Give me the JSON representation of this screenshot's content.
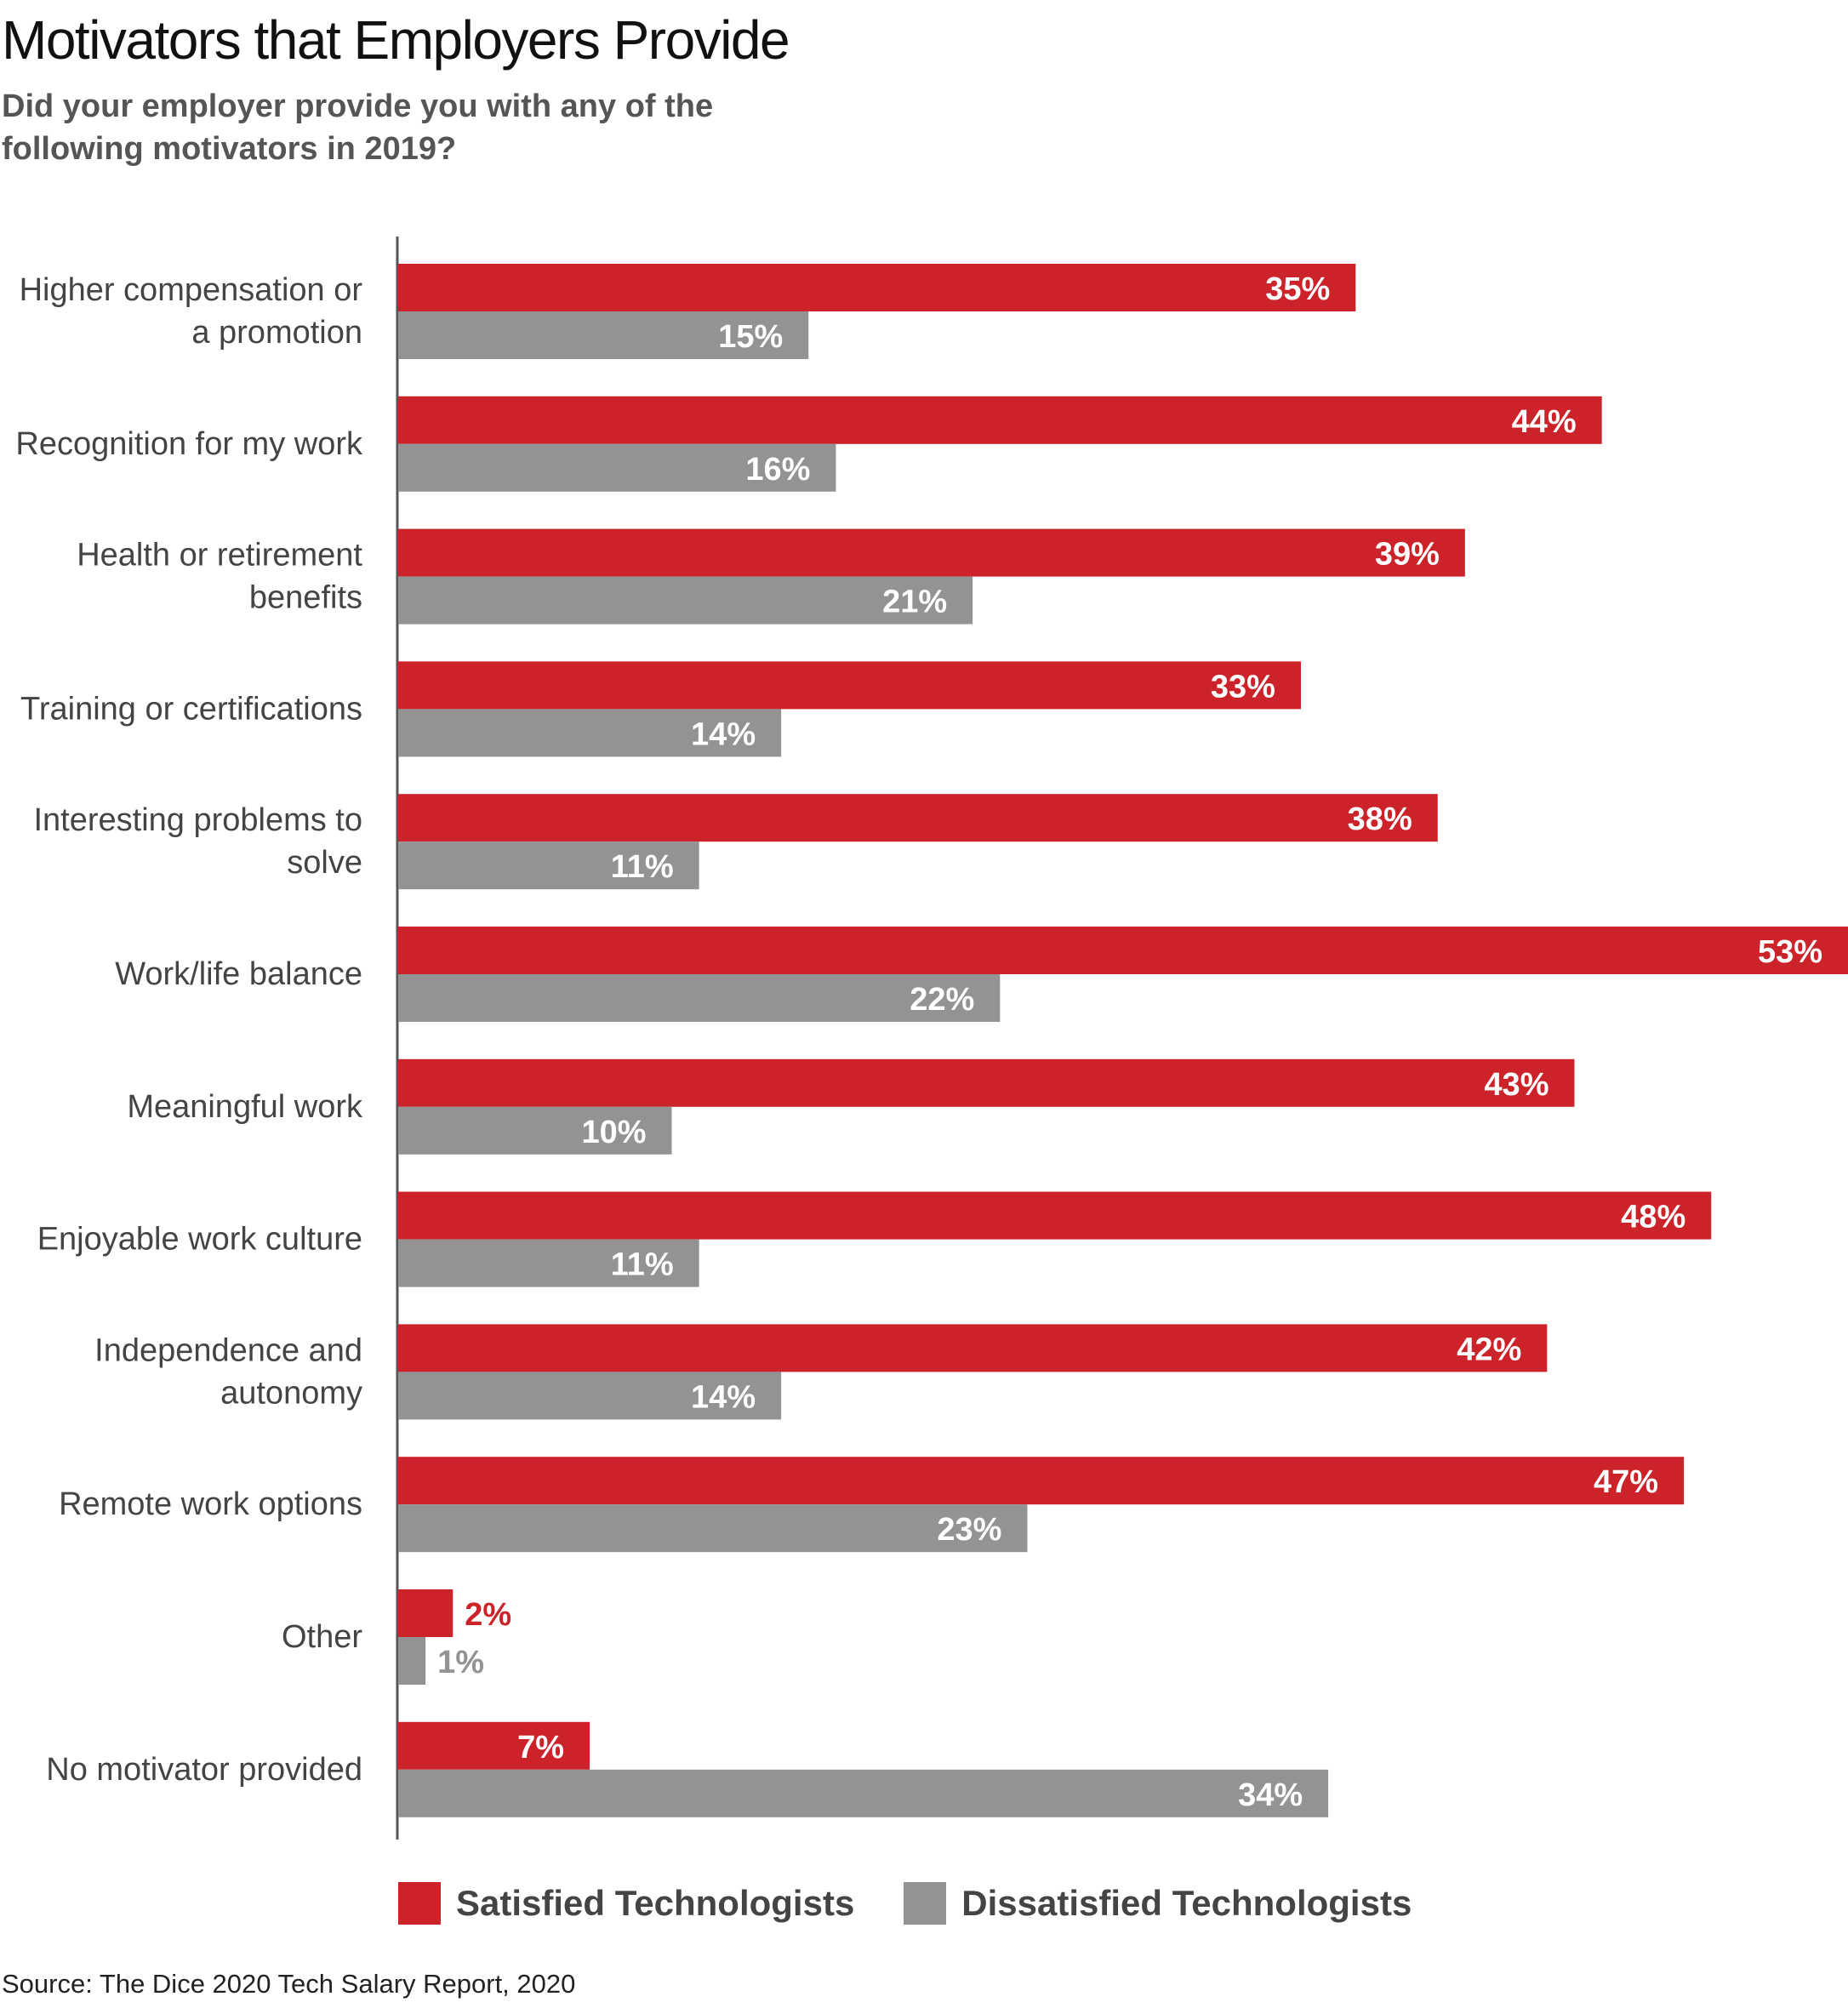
{
  "title": "Motivators that Employers Provide",
  "subtitle": "Did your employer provide you with any of the following motivators in 2019?",
  "source": "Source: The Dice 2020 Tech Salary Report, 2020",
  "colors": {
    "satisfied": "#cc2229",
    "dissatisfied": "#939393"
  },
  "chart_data": {
    "type": "bar",
    "orientation": "horizontal",
    "categories": [
      [
        "Higher compensation or",
        "a promotion"
      ],
      [
        "Recognition for my work"
      ],
      [
        "Health or retirement",
        "benefits"
      ],
      [
        "Training or certifications"
      ],
      [
        "Interesting problems to",
        "solve"
      ],
      [
        "Work/life balance"
      ],
      [
        "Meaningful work"
      ],
      [
        "Enjoyable work culture"
      ],
      [
        "Independence and",
        "autonomy"
      ],
      [
        "Remote work options"
      ],
      [
        "Other"
      ],
      [
        "No motivator provided"
      ]
    ],
    "series": [
      {
        "name": "Satisfied Technologists",
        "values": [
          35,
          44,
          39,
          33,
          38,
          53,
          43,
          48,
          42,
          47,
          2,
          7
        ],
        "labels": [
          "35%",
          "44%",
          "39%",
          "33%",
          "38%",
          "53%",
          "43%",
          "48%",
          "42%",
          "47%",
          "2%",
          "7%"
        ]
      },
      {
        "name": "Dissatisfied Technologists",
        "values": [
          15,
          16,
          21,
          14,
          11,
          22,
          10,
          11,
          14,
          23,
          1,
          34
        ],
        "labels": [
          "15%",
          "16%",
          "21%",
          "14%",
          "11%",
          "22%",
          "10%",
          "11%",
          "14%",
          "23%",
          "1%",
          "34%"
        ]
      }
    ],
    "xlim": [
      0,
      53
    ],
    "grid": false,
    "legend_position": "bottom"
  }
}
